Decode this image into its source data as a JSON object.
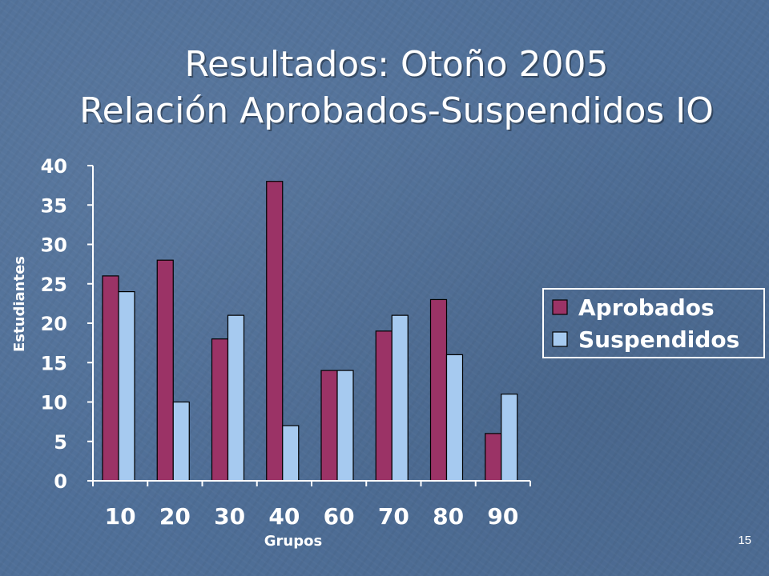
{
  "slide": {
    "title_line1": "Resultados: Otoño 2005",
    "title_line2": "Relación Aprobados-Suspendidos IO",
    "page_number": "15"
  },
  "colors": {
    "background": "#4f6f98",
    "aprobados": "#9b3366",
    "suspendidos": "#a6caf0",
    "axis": "#ffffff"
  },
  "chart_data": {
    "type": "bar",
    "xlabel": "Grupos",
    "ylabel": "Estudiantes",
    "categories": [
      "10",
      "20",
      "30",
      "40",
      "60",
      "70",
      "80",
      "90"
    ],
    "series": [
      {
        "name": "Aprobados",
        "values": [
          26,
          28,
          18,
          38,
          14,
          19,
          23,
          6
        ]
      },
      {
        "name": "Suspendidos",
        "values": [
          24,
          10,
          21,
          7,
          14,
          21,
          16,
          11
        ]
      }
    ],
    "ylim": [
      0,
      40
    ],
    "yticks": [
      0,
      5,
      10,
      15,
      20,
      25,
      30,
      35,
      40
    ],
    "grid": false,
    "legend_position": "right"
  }
}
